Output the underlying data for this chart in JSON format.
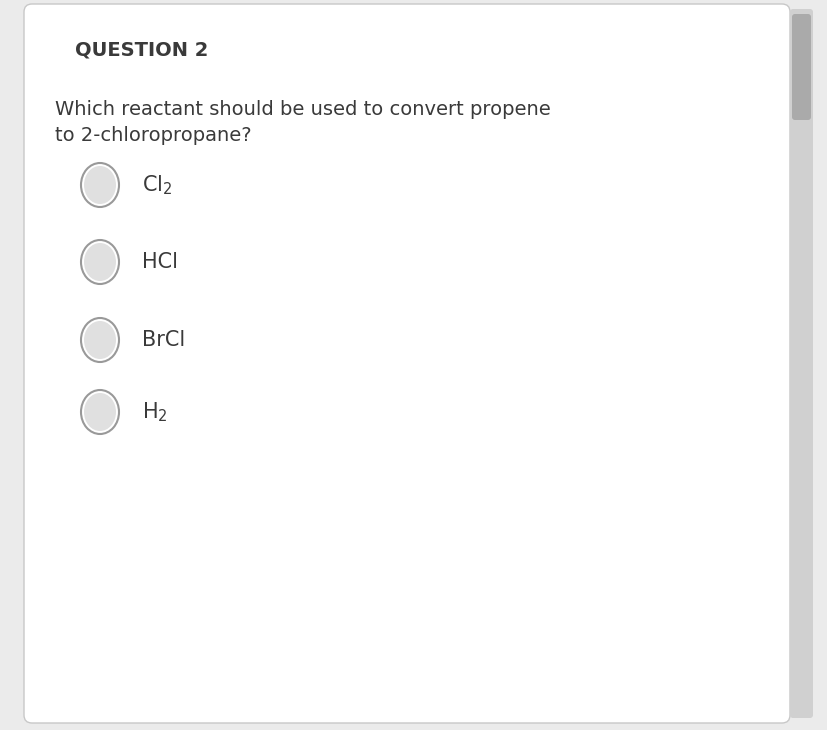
{
  "question_label": "QUESTION 2",
  "question_text_line1": "Which reactant should be used to convert propene",
  "question_text_line2": "to 2-chloropropane?",
  "options": [
    {
      "label": "Cl$_2$"
    },
    {
      "label": "HCl"
    },
    {
      "label": "BrCl"
    },
    {
      "label": "H$_2$"
    }
  ],
  "background_color": "#ebebeb",
  "card_color": "#ffffff",
  "card_border_color": "#c8c8c8",
  "text_color": "#3a3a3a",
  "circle_fill": "#e0e0e0",
  "circle_edge": "#999999",
  "scrollbar_track": "#d0d0d0",
  "scrollbar_thumb": "#aaaaaa",
  "question_label_fontsize": 14,
  "question_text_fontsize": 14,
  "option_fontsize": 15
}
